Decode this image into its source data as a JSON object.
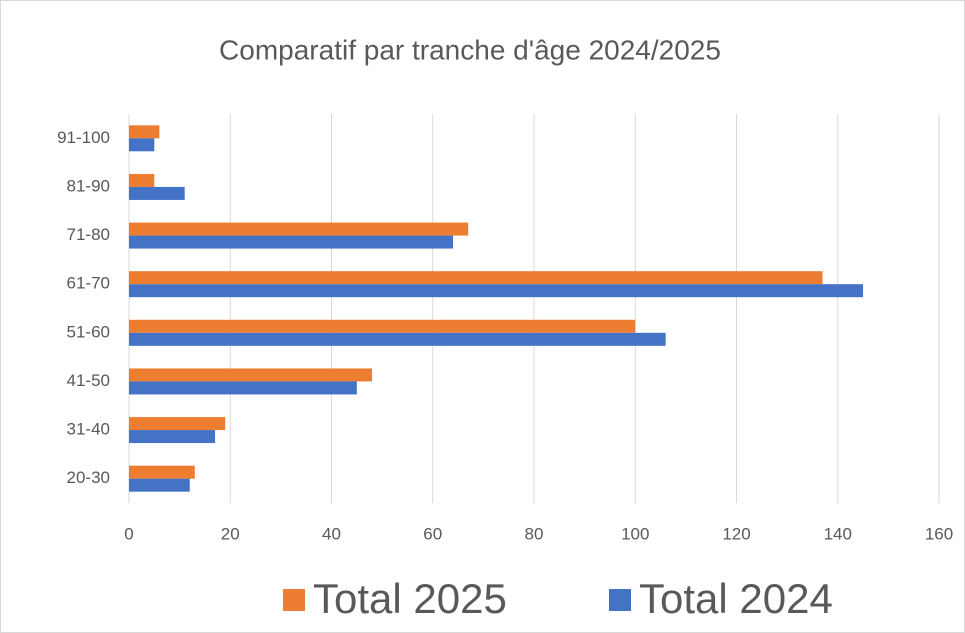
{
  "chart_data": {
    "type": "barh",
    "title": "Comparatif par tranche d'âge 2024/2025",
    "categories": [
      "20-30",
      "31-40",
      "41-50",
      "51-60",
      "61-70",
      "71-80",
      "81-90",
      "91-100"
    ],
    "series": [
      {
        "name": "Total 2025",
        "color": "#ed7d31",
        "values": [
          13,
          19,
          48,
          100,
          137,
          67,
          5,
          6
        ]
      },
      {
        "name": "Total 2024",
        "color": "#4472c4",
        "values": [
          12,
          17,
          45,
          106,
          145,
          64,
          11,
          5
        ]
      }
    ],
    "xlim": [
      0,
      160
    ],
    "xticks": [
      0,
      20,
      40,
      60,
      80,
      100,
      120,
      140,
      160
    ],
    "grid": true,
    "legend": "bottom"
  }
}
